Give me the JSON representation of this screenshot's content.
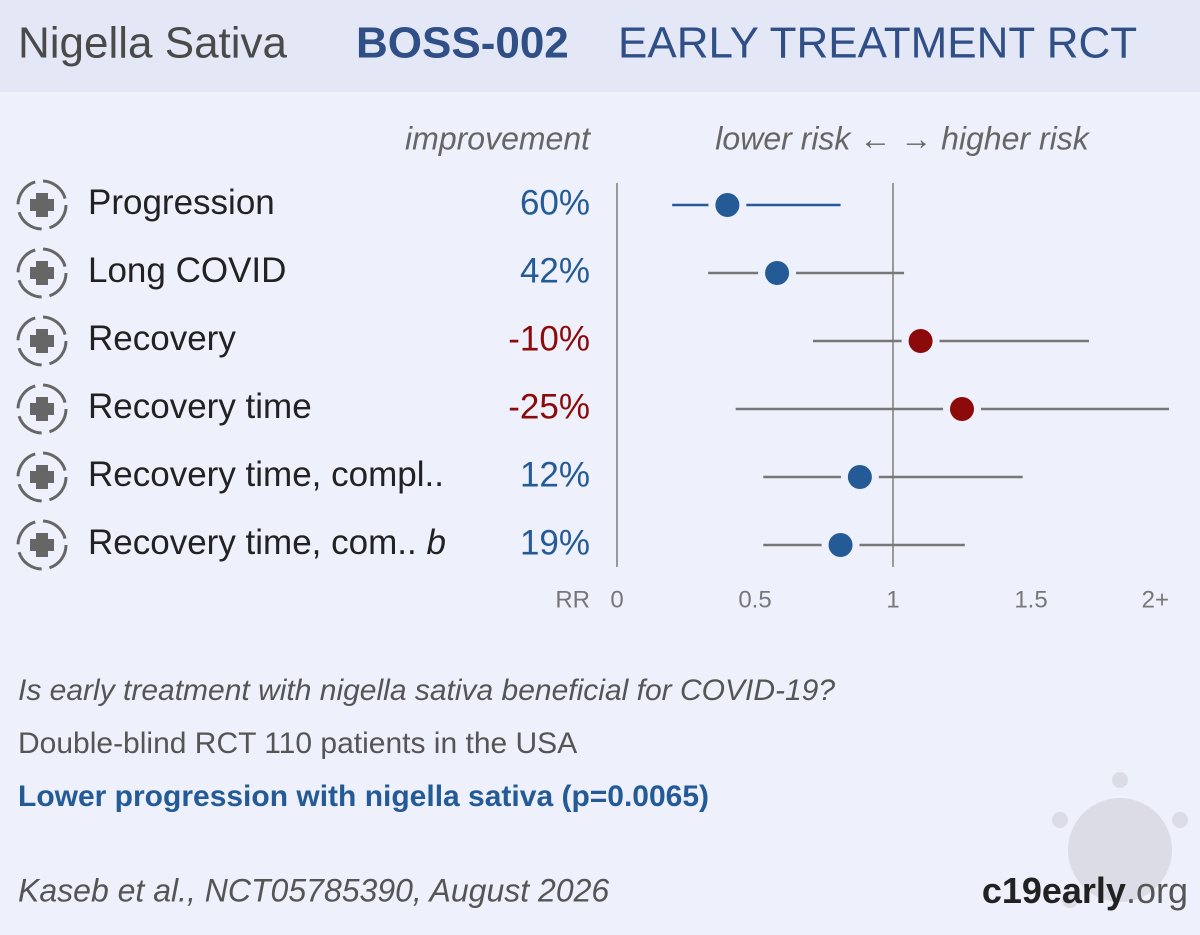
{
  "chart_data": {
    "type": "forest",
    "title": "Nigella Sativa",
    "trial": "BOSS-002",
    "subtitle": "EARLY TREATMENT RCT",
    "improvement_header": "improvement",
    "direction_header": "lower risk ← → higher risk",
    "x_label": "RR",
    "categories": [
      "Progression",
      "Long COVID",
      "Recovery",
      "Recovery time",
      "Recovery time, compl..",
      "Recovery time, com.."
    ],
    "category_notes": [
      null,
      null,
      null,
      null,
      null,
      "b"
    ],
    "values": [
      0.4,
      0.58,
      1.1,
      1.25,
      0.88,
      0.81
    ],
    "ci_low": [
      0.2,
      0.33,
      0.71,
      0.43,
      0.53,
      0.53
    ],
    "ci_high": [
      0.81,
      1.04,
      1.71,
      2.0,
      1.47,
      1.26
    ],
    "colors": [
      "#245a96",
      "#245a96",
      "#8c0a0a",
      "#8c0a0a",
      "#245a96",
      "#245a96"
    ],
    "improvement": [
      60,
      42,
      -10,
      -25,
      12,
      19
    ],
    "improvement_labels": [
      "60%",
      "42%",
      "-10%",
      "-25%",
      "12%",
      "19%"
    ],
    "xlim": [
      0,
      2
    ],
    "xticks": [
      0,
      0.5,
      1,
      1.5,
      {
        "value": 2,
        "label": "2+"
      }
    ],
    "reference_lines": [
      0,
      1
    ],
    "question": "Is early treatment with nigella sativa beneficial for COVID-19?",
    "design": "Double-blind RCT 110 patients in the USA",
    "conclusion": "Lower progression with nigella sativa (p=0.0065)",
    "citation": "Kaseb et al., NCT05785390, August 2026",
    "site_bold": "c19early",
    "site_rest": ".org"
  }
}
